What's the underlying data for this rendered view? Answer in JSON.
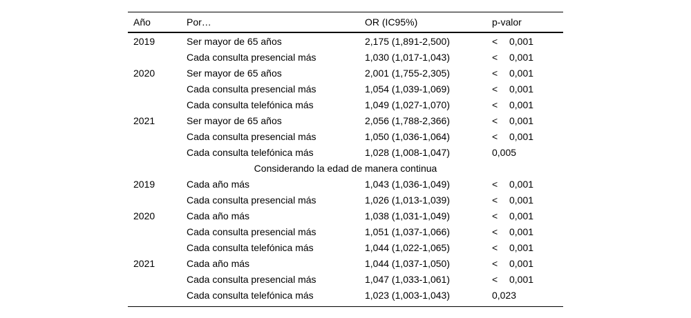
{
  "page": {
    "background": "#ffffff",
    "text_color": "#000000"
  },
  "table": {
    "headers": {
      "year": "Año",
      "predictor": "Por…",
      "or_ci": "OR (IC95%)",
      "p_value": "p-valor"
    },
    "section_title": "Considerando la edad de manera continua",
    "rows_age_binary": [
      {
        "year": "2019",
        "predictor": "Ser mayor de 65 años",
        "or_ci": "2,175 (1,891-2,500)",
        "p_sign": "<",
        "p_value": "0,001"
      },
      {
        "year": "",
        "predictor": "Cada consulta presencial más",
        "or_ci": "1,030 (1,017-1,043)",
        "p_sign": "<",
        "p_value": "0,001"
      },
      {
        "year": "2020",
        "predictor": "Ser mayor de 65 años",
        "or_ci": "2,001 (1,755-2,305)",
        "p_sign": "<",
        "p_value": "0,001"
      },
      {
        "year": "",
        "predictor": "Cada consulta presencial más",
        "or_ci": "1,054 (1,039-1,069)",
        "p_sign": "<",
        "p_value": "0,001"
      },
      {
        "year": "",
        "predictor": "Cada consulta telefónica más",
        "or_ci": "1,049 (1,027-1,070)",
        "p_sign": "<",
        "p_value": "0,001"
      },
      {
        "year": "2021",
        "predictor": "Ser mayor de 65 años",
        "or_ci": "2,056 (1,788-2,366)",
        "p_sign": "<",
        "p_value": "0,001"
      },
      {
        "year": "",
        "predictor": "Cada consulta presencial más",
        "or_ci": "1,050 (1,036-1,064)",
        "p_sign": "<",
        "p_value": "0,001"
      },
      {
        "year": "",
        "predictor": "Cada consulta telefónica más",
        "or_ci": "1,028 (1,008-1,047)",
        "p_sign": "",
        "p_value": "0,005"
      }
    ],
    "rows_age_continuous": [
      {
        "year": "2019",
        "predictor": "Cada año más",
        "or_ci": "1,043 (1,036-1,049)",
        "p_sign": "<",
        "p_value": "0,001"
      },
      {
        "year": "",
        "predictor": "Cada consulta presencial más",
        "or_ci": "1,026 (1,013-1,039)",
        "p_sign": "<",
        "p_value": "0,001"
      },
      {
        "year": "2020",
        "predictor": "Cada año más",
        "or_ci": "1,038 (1,031-1,049)",
        "p_sign": "<",
        "p_value": "0,001"
      },
      {
        "year": "",
        "predictor": "Cada consulta presencial más",
        "or_ci": "1,051 (1,037-1,066)",
        "p_sign": "<",
        "p_value": "0,001"
      },
      {
        "year": "",
        "predictor": "Cada consulta telefónica más",
        "or_ci": "1,044 (1,022-1,065)",
        "p_sign": "<",
        "p_value": "0,001"
      },
      {
        "year": "2021",
        "predictor": "Cada año más",
        "or_ci": "1,044 (1,037-1,050)",
        "p_sign": "<",
        "p_value": "0,001"
      },
      {
        "year": "",
        "predictor": "Cada consulta presencial más",
        "or_ci": "1,047 (1,033-1,061)",
        "p_sign": "<",
        "p_value": "0,001"
      },
      {
        "year": "",
        "predictor": "Cada consulta telefónica más",
        "or_ci": "1,023 (1,003-1,043)",
        "p_sign": "",
        "p_value": "0,023"
      }
    ]
  }
}
